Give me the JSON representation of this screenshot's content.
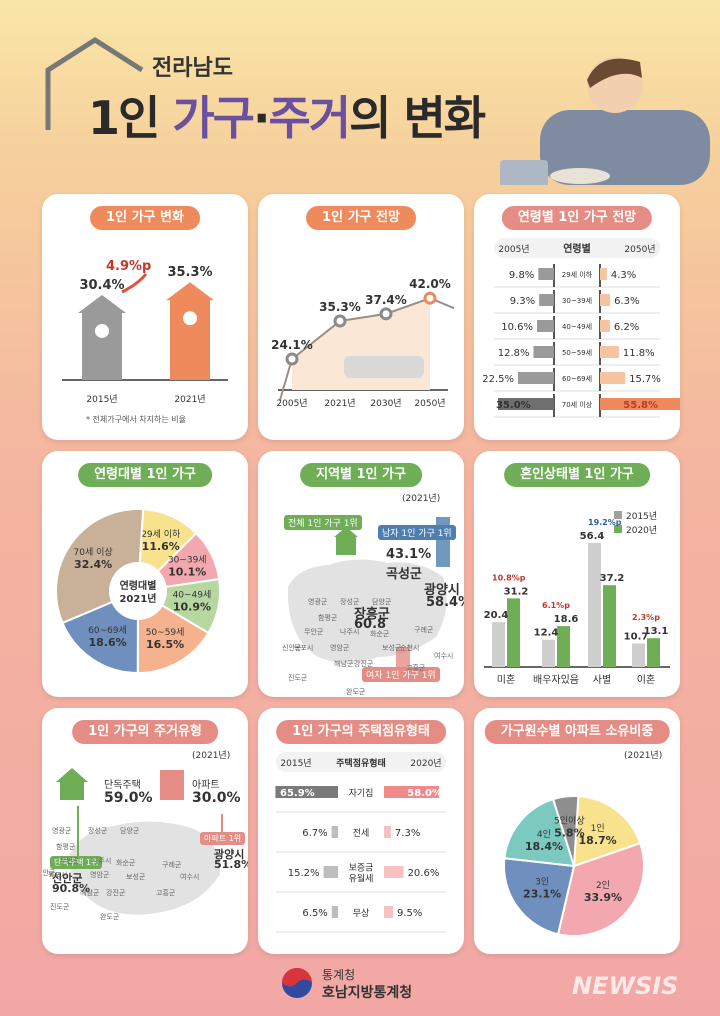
{
  "header": {
    "subtitle": "전라남도",
    "title_a": "1인 ",
    "title_b": "가구",
    "title_c": "·",
    "title_d": "주거",
    "title_e": "의 변화"
  },
  "cards": {
    "change": {
      "title": "1인 가구 변화",
      "footnote": "* 전체가구에서 차지하는 비율"
    },
    "outlook": {
      "title": "1인 가구 전망"
    },
    "age_outlook": {
      "title": "연령별 1인 가구 전망",
      "left_year": "2005년",
      "mid": "연령별",
      "right_year": "2050년"
    },
    "age_group": {
      "title": "연령대별 1인 가구",
      "center": "연령대별",
      "center_year": "2021년"
    },
    "region": {
      "title": "지역별  1인 가구",
      "year": "(2021년)",
      "tag_total": "전체 1인 가구 1위",
      "tag_male": "남자 1인 가구 1위",
      "tag_female": "여자 1인 가구 1위",
      "gokseong": "43.1",
      "gokseong_name": "곡성군",
      "gwangyang": "58.4",
      "gwangyang_name": "광양시",
      "jangheung": "60.8",
      "jangheung_name": "장흥군"
    },
    "marital": {
      "title": "혼인상태별  1인 가구",
      "legend_2015": "2015년",
      "legend_2020": "2020년"
    },
    "housing_type": {
      "title": "1인 가구의 주거유형",
      "year": "(2021년)",
      "detached_label": "단독주택",
      "detached_value": "59.0",
      "apt_label": "아파트",
      "apt_value": "30.0",
      "tag_apt": "아파트 1위",
      "tag_det": "단독주택 1위",
      "gwangyang": "광양시",
      "gwangyang_v": "51.8",
      "sinan": "신안군",
      "sinan_v": "90.8"
    },
    "tenure": {
      "title": "1인 가구의 주택점유형태",
      "left_year": "2015년",
      "mid": "주택점유형태",
      "right_year": "2020년"
    },
    "apt_own": {
      "title": "가구원수별 아파트 소유비중",
      "year": "(2021년)"
    }
  },
  "map_labels": [
    "영광군",
    "장성군",
    "담양군",
    "함평군",
    "곡성군",
    "구례군",
    "화순군",
    "순천시",
    "나주시",
    "무안군",
    "신안군",
    "목포시",
    "영암군",
    "보성군",
    "강진군",
    "해남군",
    "고흥군",
    "진도군",
    "완도군",
    "여수시"
  ],
  "colors": {
    "orange": "#ef8a5c",
    "green": "#6fae57",
    "gray": "#8a8a8a",
    "purple": "#6b4fa0",
    "blue": "#4d7fb0"
  },
  "footer": {
    "org1": "통계청",
    "org2": "호남지방통계청",
    "watermark": "NEWSIS"
  },
  "chart_data": [
    {
      "type": "bar",
      "id": "change",
      "categories": [
        "2015년",
        "2021년"
      ],
      "values": [
        30.4,
        35.3
      ],
      "unit": "%",
      "delta": "4.9%p",
      "footnote": "* 전체가구에서 차지하는 비율"
    },
    {
      "type": "line",
      "id": "outlook",
      "categories": [
        "2005년",
        "2021년",
        "2030년",
        "2050년"
      ],
      "values": [
        24.1,
        35.3,
        37.4,
        42.0
      ],
      "unit": "%"
    },
    {
      "type": "bar",
      "id": "age_outlook",
      "categories": [
        "29세 이하",
        "30~39세",
        "40~49세",
        "50~59세",
        "60~69세",
        "70세 이상"
      ],
      "series": [
        {
          "name": "2005년",
          "values": [
            9.8,
            9.3,
            10.6,
            12.8,
            22.5,
            35.0
          ]
        },
        {
          "name": "2050년",
          "values": [
            4.3,
            6.3,
            6.2,
            11.8,
            15.7,
            55.8
          ]
        }
      ],
      "unit": "%"
    },
    {
      "type": "pie",
      "id": "age_group",
      "categories": [
        "29세 이하",
        "30~39세",
        "40~49세",
        "50~59세",
        "60~69세",
        "70세 이상"
      ],
      "values": [
        11.6,
        10.1,
        10.9,
        16.5,
        18.6,
        32.4
      ],
      "unit": "%"
    },
    {
      "type": "bar",
      "id": "marital",
      "categories": [
        "미혼",
        "배우자있음",
        "사별",
        "이혼"
      ],
      "series": [
        {
          "name": "2015년",
          "values": [
            20.4,
            12.4,
            56.4,
            10.7
          ]
        },
        {
          "name": "2020년",
          "values": [
            31.2,
            18.6,
            37.2,
            13.1
          ]
        }
      ],
      "changes": [
        "10.8%p",
        "6.1%p",
        "-19.2%p",
        "2.3%p"
      ],
      "unit": "%"
    },
    {
      "type": "bar",
      "id": "tenure",
      "categories": [
        "자기집",
        "전세",
        "보증금 유월세",
        "무상"
      ],
      "series": [
        {
          "name": "2015년",
          "values": [
            65.9,
            6.7,
            15.2,
            6.5
          ]
        },
        {
          "name": "2020년",
          "values": [
            58.0,
            7.3,
            20.6,
            9.5
          ]
        }
      ],
      "unit": "%"
    },
    {
      "type": "pie",
      "id": "apt_own",
      "categories": [
        "1인",
        "2인",
        "3인",
        "4인",
        "5인이상"
      ],
      "values": [
        18.7,
        33.9,
        23.1,
        18.4,
        5.8
      ],
      "unit": "%"
    }
  ]
}
